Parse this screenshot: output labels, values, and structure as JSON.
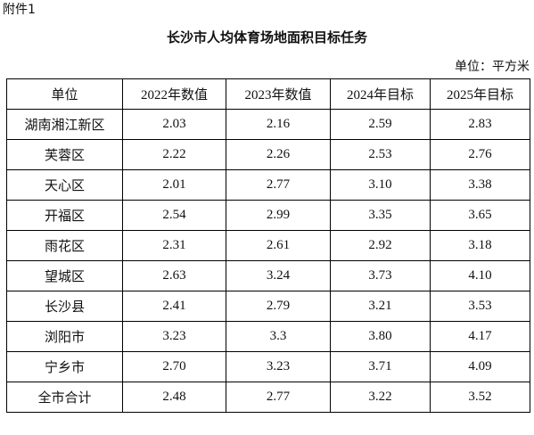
{
  "attachment_label": "附件1",
  "title": "长沙市人均体育场地面积目标任务",
  "unit": "单位：平方米",
  "table": {
    "headers": [
      "单位",
      "2022年数值",
      "2023年数值",
      "2024年目标",
      "2025年目标"
    ],
    "rows": [
      [
        "湖南湘江新区",
        "2.03",
        "2.16",
        "2.59",
        "2.83"
      ],
      [
        "芙蓉区",
        "2.22",
        "2.26",
        "2.53",
        "2.76"
      ],
      [
        "天心区",
        "2.01",
        "2.77",
        "3.10",
        "3.38"
      ],
      [
        "开福区",
        "2.54",
        "2.99",
        "3.35",
        "3.65"
      ],
      [
        "雨花区",
        "2.31",
        "2.61",
        "2.92",
        "3.18"
      ],
      [
        "望城区",
        "2.63",
        "3.24",
        "3.73",
        "4.10"
      ],
      [
        "长沙县",
        "2.41",
        "2.79",
        "3.21",
        "3.53"
      ],
      [
        "浏阳市",
        "3.23",
        "3.3",
        "3.80",
        "4.17"
      ],
      [
        "宁乡市",
        "2.70",
        "3.23",
        "3.71",
        "4.09"
      ],
      [
        "全市合计",
        "2.48",
        "2.77",
        "3.22",
        "3.52"
      ]
    ]
  }
}
